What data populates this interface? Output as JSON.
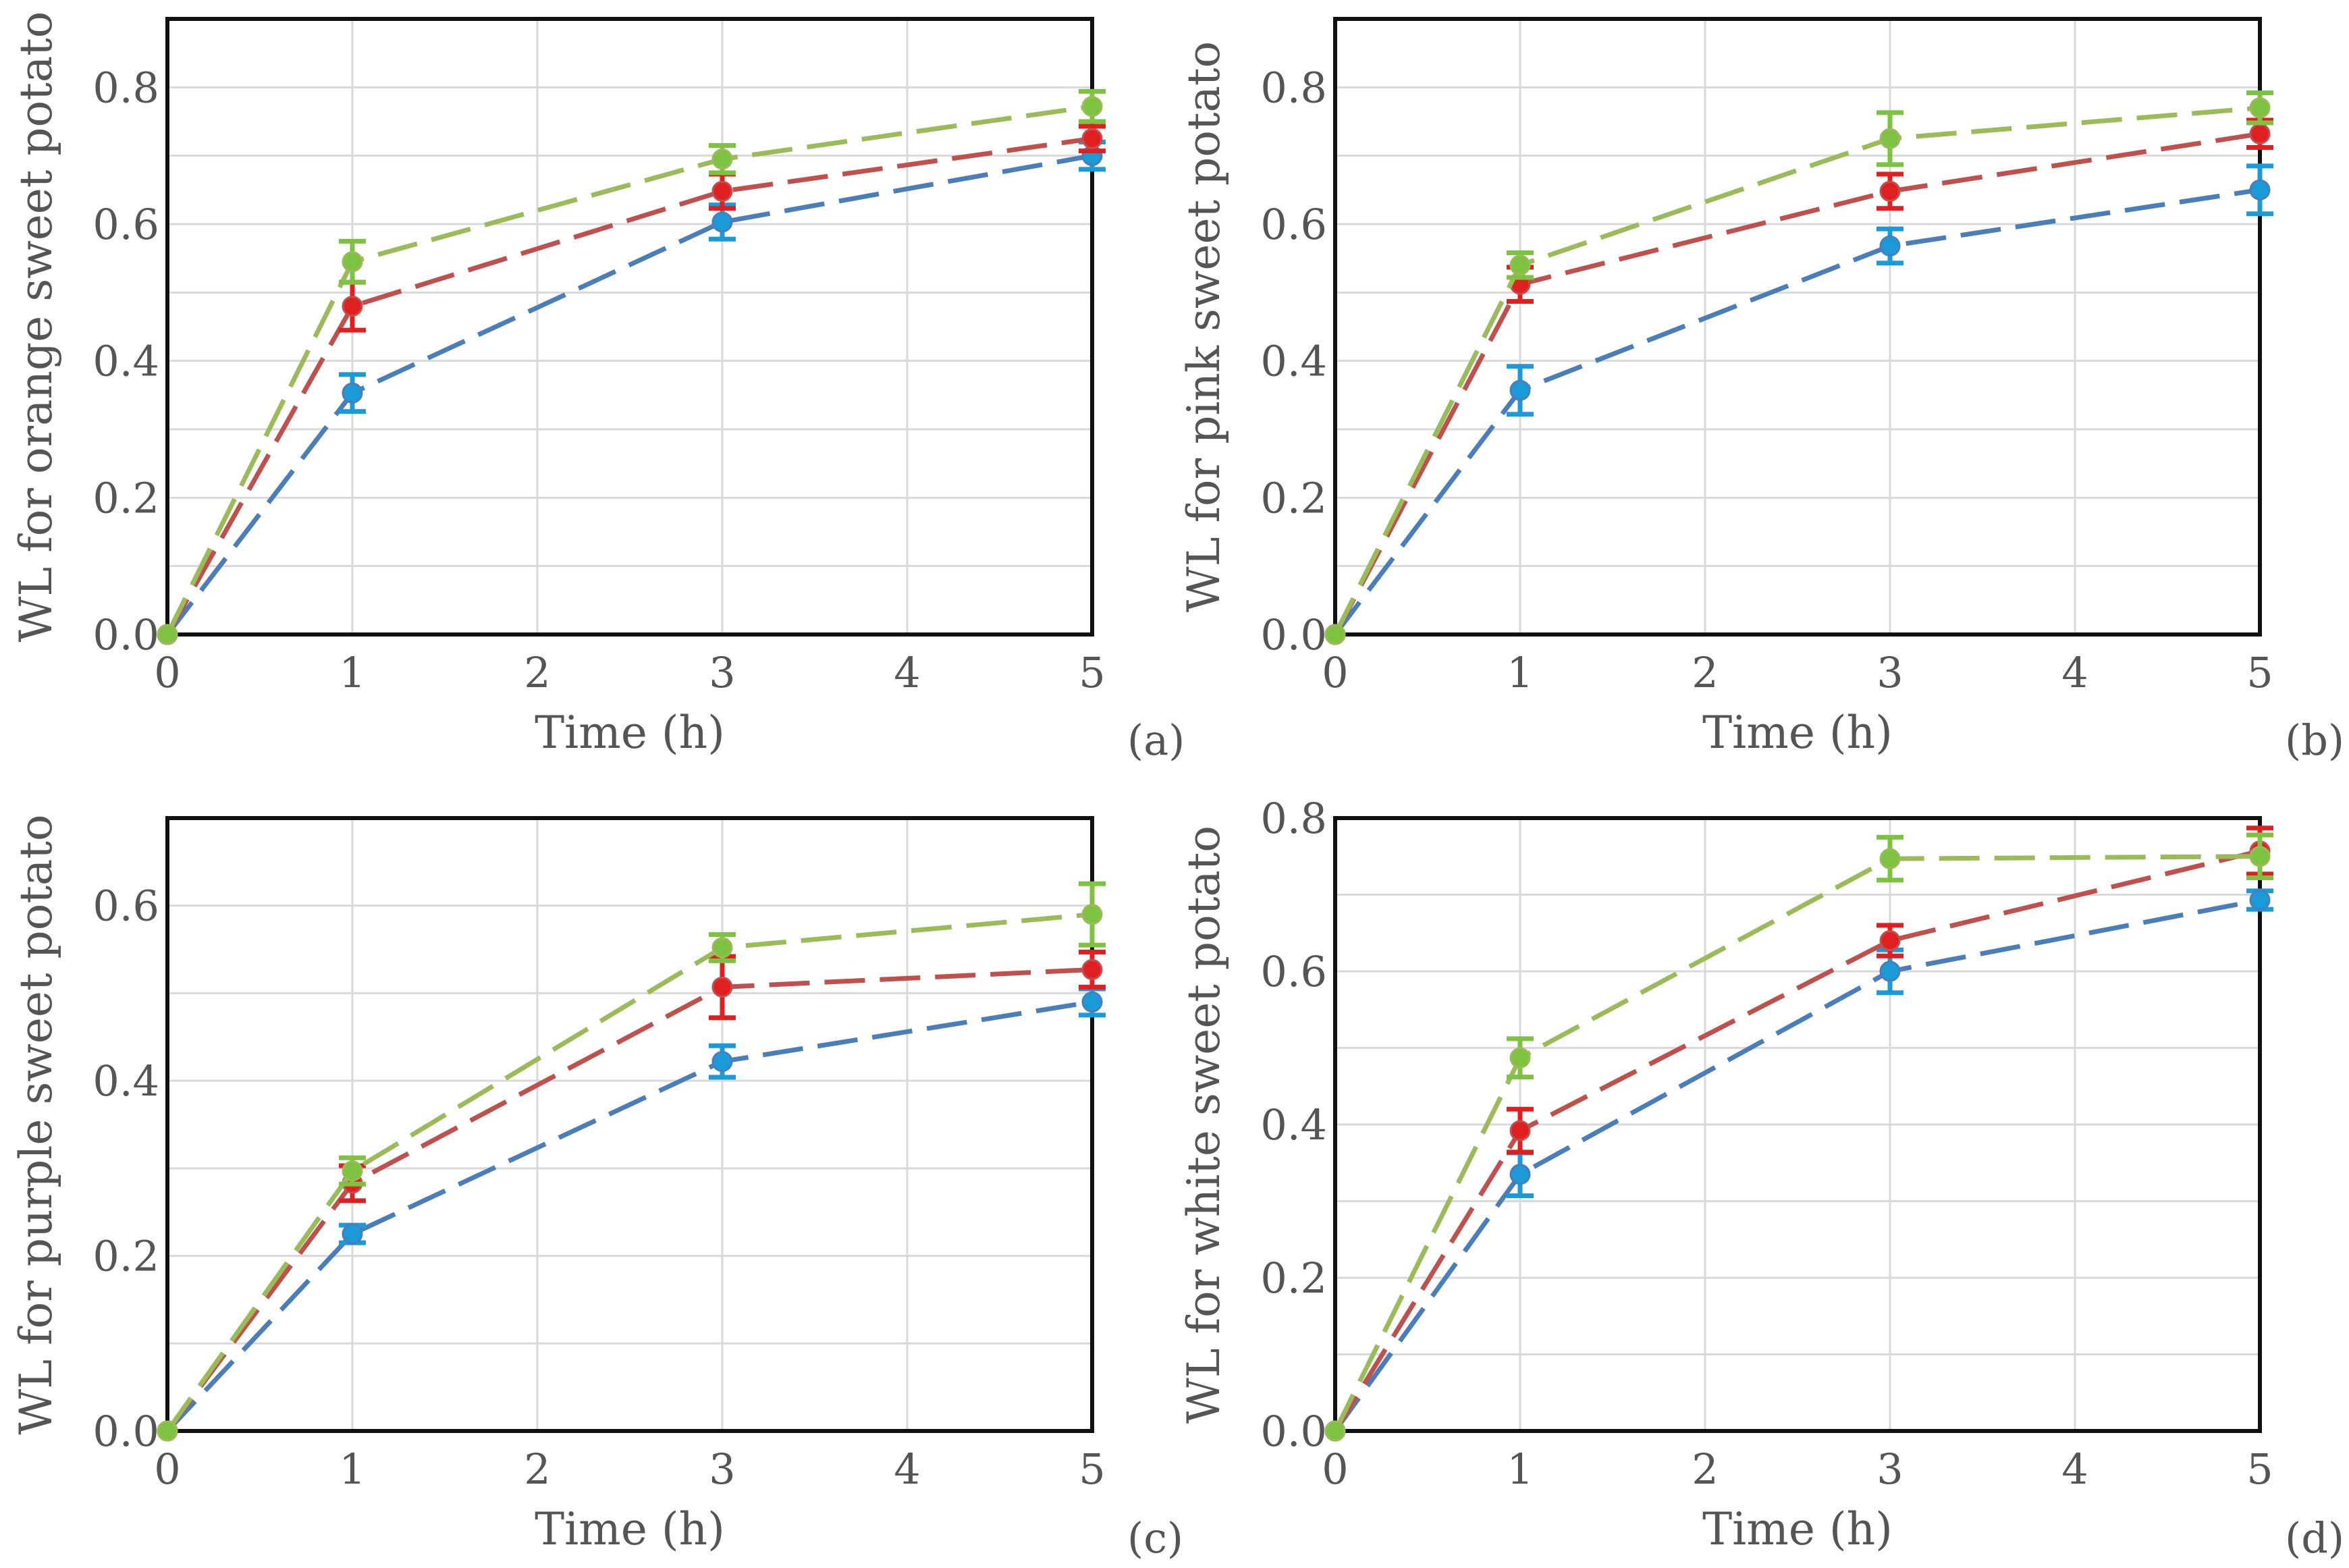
{
  "chart_data": [
    {
      "type": "line",
      "panel_label": "(a)",
      "xlabel": "Time (h)",
      "ylabel": "WL for orange sweet potato",
      "xlim": [
        0,
        5
      ],
      "ylim": [
        0,
        0.9
      ],
      "xticks": [
        0,
        1,
        2,
        3,
        4,
        5
      ],
      "yticks": [
        0,
        0.2,
        0.4,
        0.6,
        0.8
      ],
      "ytick_labels": [
        "0.0",
        "0.2",
        "0.4",
        "0.6",
        "0.8"
      ],
      "grid": true,
      "x": [
        0,
        1,
        3,
        5
      ],
      "series": [
        {
          "name": "series-blue",
          "color": "#4a7ebb",
          "errcolor": "#1a9ad6",
          "values": [
            0.0,
            0.353,
            0.603,
            0.7
          ],
          "errors": [
            0.0,
            0.027,
            0.025,
            0.02
          ]
        },
        {
          "name": "series-red",
          "color": "#c0504d",
          "errcolor": "#e02020",
          "values": [
            0.0,
            0.48,
            0.648,
            0.725
          ],
          "errors": [
            0.0,
            0.035,
            0.025,
            0.018
          ]
        },
        {
          "name": "series-green",
          "color": "#9bbb59",
          "errcolor": "#7ec242",
          "values": [
            0.0,
            0.545,
            0.695,
            0.772
          ],
          "errors": [
            0.0,
            0.03,
            0.02,
            0.022
          ]
        }
      ]
    },
    {
      "type": "line",
      "panel_label": "(b)",
      "xlabel": "Time (h)",
      "ylabel": "WL for pink sweet potato",
      "xlim": [
        0,
        5
      ],
      "ylim": [
        0,
        0.9
      ],
      "xticks": [
        0,
        1,
        2,
        3,
        4,
        5
      ],
      "yticks": [
        0,
        0.2,
        0.4,
        0.6,
        0.8
      ],
      "ytick_labels": [
        "0.0",
        "0.2",
        "0.4",
        "0.6",
        "0.8"
      ],
      "grid": true,
      "x": [
        0,
        1,
        3,
        5
      ],
      "series": [
        {
          "name": "series-blue",
          "color": "#4a7ebb",
          "errcolor": "#1a9ad6",
          "values": [
            0.0,
            0.357,
            0.568,
            0.65
          ],
          "errors": [
            0.0,
            0.035,
            0.025,
            0.035
          ]
        },
        {
          "name": "series-red",
          "color": "#c0504d",
          "errcolor": "#e02020",
          "values": [
            0.0,
            0.512,
            0.648,
            0.732
          ],
          "errors": [
            0.0,
            0.025,
            0.025,
            0.02
          ]
        },
        {
          "name": "series-green",
          "color": "#9bbb59",
          "errcolor": "#7ec242",
          "values": [
            0.0,
            0.54,
            0.725,
            0.77
          ],
          "errors": [
            0.0,
            0.018,
            0.038,
            0.022
          ]
        }
      ]
    },
    {
      "type": "line",
      "panel_label": "(c)",
      "xlabel": "Time (h)",
      "ylabel": "WL for purple sweet potato",
      "xlim": [
        0,
        5
      ],
      "ylim": [
        0,
        0.7
      ],
      "xticks": [
        0,
        1,
        2,
        3,
        4,
        5
      ],
      "yticks": [
        0,
        0.2,
        0.4,
        0.6
      ],
      "ytick_labels": [
        "0.0",
        "0.2",
        "0.4",
        "0.6"
      ],
      "grid": true,
      "x": [
        0,
        1,
        3,
        5
      ],
      "series": [
        {
          "name": "series-blue",
          "color": "#4a7ebb",
          "errcolor": "#1a9ad6",
          "values": [
            0.0,
            0.225,
            0.422,
            0.49
          ],
          "errors": [
            0.0,
            0.01,
            0.018,
            0.015
          ]
        },
        {
          "name": "series-red",
          "color": "#c0504d",
          "errcolor": "#e02020",
          "values": [
            0.0,
            0.283,
            0.507,
            0.527
          ],
          "errors": [
            0.0,
            0.02,
            0.035,
            0.02
          ]
        },
        {
          "name": "series-green",
          "color": "#9bbb59",
          "errcolor": "#7ec242",
          "values": [
            0.0,
            0.297,
            0.552,
            0.59
          ],
          "errors": [
            0.0,
            0.015,
            0.015,
            0.035
          ]
        }
      ]
    },
    {
      "type": "line",
      "panel_label": "(d)",
      "xlabel": "Time (h)",
      "ylabel": "WL for white sweet potato",
      "xlim": [
        0,
        5
      ],
      "ylim": [
        0,
        0.8
      ],
      "xticks": [
        0,
        1,
        2,
        3,
        4,
        5
      ],
      "yticks": [
        0,
        0.2,
        0.4,
        0.6,
        0.8
      ],
      "ytick_labels": [
        "0.0",
        "0.2",
        "0.4",
        "0.6",
        "0.8"
      ],
      "grid": true,
      "x": [
        0,
        1,
        3,
        5
      ],
      "series": [
        {
          "name": "series-blue",
          "color": "#4a7ebb",
          "errcolor": "#1a9ad6",
          "values": [
            0.0,
            0.335,
            0.6,
            0.693
          ],
          "errors": [
            0.0,
            0.028,
            0.028,
            0.012
          ]
        },
        {
          "name": "series-red",
          "color": "#c0504d",
          "errcolor": "#e02020",
          "values": [
            0.0,
            0.392,
            0.64,
            0.757
          ],
          "errors": [
            0.0,
            0.028,
            0.02,
            0.03
          ]
        },
        {
          "name": "series-green",
          "color": "#9bbb59",
          "errcolor": "#7ec242",
          "values": [
            0.0,
            0.487,
            0.747,
            0.75
          ],
          "errors": [
            0.0,
            0.025,
            0.028,
            0.028
          ]
        }
      ]
    }
  ]
}
